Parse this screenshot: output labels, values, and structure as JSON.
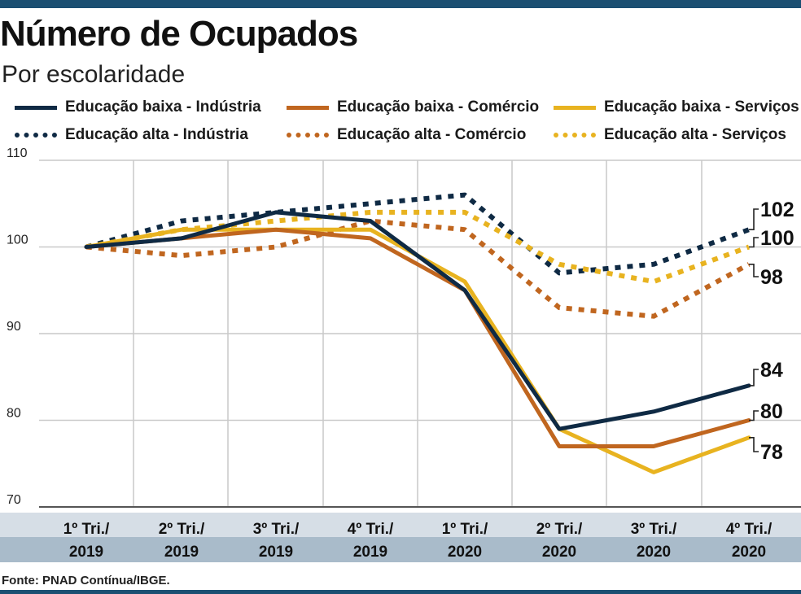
{
  "title": "Número de Ocupados",
  "subtitle": "Por escolaridade",
  "source": "Fonte: PNAD Contínua/IBGE.",
  "colors": {
    "navy": "#0f2a44",
    "orange": "#c0661f",
    "gold": "#e8b320",
    "axis_band_light": "#d6dee6",
    "axis_band_dark": "#a9bbca",
    "accent_bar": "#1b4f72"
  },
  "legend": [
    {
      "label": "Educação baixa - Indústria",
      "color": "#0f2a44",
      "style": "solid"
    },
    {
      "label": "Educação baixa - Comércio",
      "color": "#c0661f",
      "style": "solid"
    },
    {
      "label": "Educação baixa - Serviços",
      "color": "#e8b320",
      "style": "solid"
    },
    {
      "label": "Educação alta - Indústria",
      "color": "#0f2a44",
      "style": "dotted"
    },
    {
      "label": "Educação alta - Comércio",
      "color": "#c0661f",
      "style": "dotted"
    },
    {
      "label": "Educação alta - Serviços",
      "color": "#e8b320",
      "style": "dotted"
    }
  ],
  "chart_data": {
    "type": "line",
    "title": "Número de Ocupados",
    "subtitle": "Por escolaridade",
    "categories": [
      [
        "1º Tri./",
        "2019"
      ],
      [
        "2º Tri./",
        "2019"
      ],
      [
        "3º Tri./",
        "2019"
      ],
      [
        "4º Tri./",
        "2019"
      ],
      [
        "1º Tri./",
        "2020"
      ],
      [
        "2º Tri./",
        "2020"
      ],
      [
        "3º Tri./",
        "2020"
      ],
      [
        "4º Tri./",
        "2020"
      ]
    ],
    "ylim": [
      70,
      110
    ],
    "yticks": [
      70,
      80,
      90,
      100,
      110
    ],
    "grid": true,
    "legend_position": "top",
    "series": [
      {
        "name": "Educação alta - Indústria",
        "color": "#0f2a44",
        "style": "dotted",
        "values": [
          100,
          103,
          104,
          105,
          106,
          97,
          98,
          102
        ],
        "end_label": "102"
      },
      {
        "name": "Educação alta - Serviços",
        "color": "#e8b320",
        "style": "dotted",
        "values": [
          100,
          102,
          103,
          104,
          104,
          98,
          96,
          100
        ],
        "end_label": "100"
      },
      {
        "name": "Educação alta - Comércio",
        "color": "#c0661f",
        "style": "dotted",
        "values": [
          100,
          99,
          100,
          103,
          102,
          93,
          92,
          98
        ],
        "end_label": "98"
      },
      {
        "name": "Educação baixa - Serviços",
        "color": "#e8b320",
        "style": "solid",
        "values": [
          100,
          102,
          102,
          102,
          96,
          79,
          74,
          78
        ],
        "end_label": "78"
      },
      {
        "name": "Educação baixa - Comércio",
        "color": "#c0661f",
        "style": "solid",
        "values": [
          100,
          101,
          102,
          101,
          95,
          77,
          77,
          80
        ],
        "end_label": "80"
      },
      {
        "name": "Educação baixa - Indústria",
        "color": "#0f2a44",
        "style": "solid",
        "values": [
          100,
          101,
          104,
          103,
          95,
          79,
          81,
          84
        ],
        "end_label": "84"
      }
    ]
  }
}
